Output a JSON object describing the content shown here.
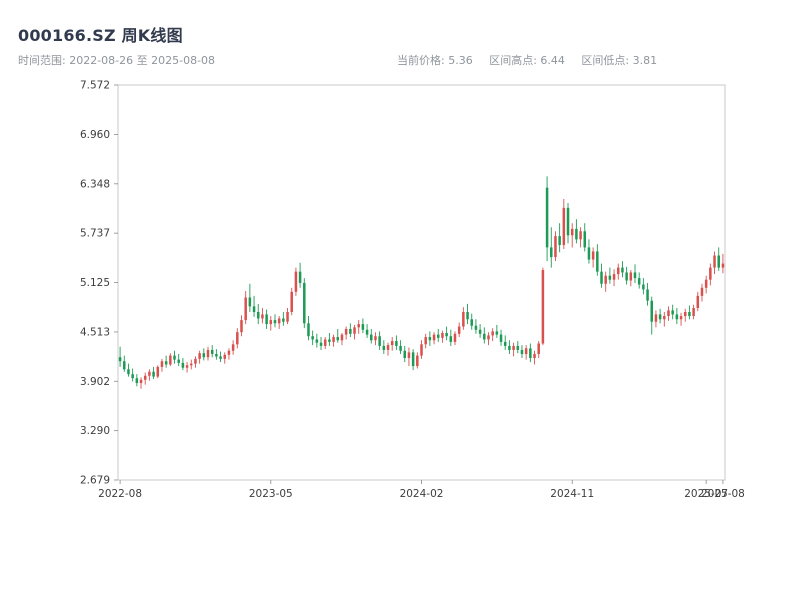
{
  "header": {
    "title": "000166.SZ 周K线图",
    "date_range": "时间范围: 2022-08-26 至 2025-08-08",
    "stats": [
      "当前价格: 5.36",
      "区间高点: 6.44",
      "区间低点: 3.81"
    ]
  },
  "chart_data": {
    "type": "candlestick",
    "symbol": "000166.SZ",
    "interval": "weekly",
    "title": "000166.SZ 周K线图",
    "date_start": "2022-08-26",
    "date_end": "2025-08-08",
    "current_price": 5.36,
    "range_high": 6.44,
    "range_low": 3.81,
    "ylim": [
      2.679,
      7.572
    ],
    "yticks": [
      7.572,
      6.96,
      6.348,
      5.737,
      5.125,
      4.513,
      3.902,
      3.29,
      2.679
    ],
    "xticks": [
      {
        "index": 0,
        "label": "2022-08"
      },
      {
        "index": 36,
        "label": "2023-05"
      },
      {
        "index": 72,
        "label": "2024-02"
      },
      {
        "index": 108,
        "label": "2024-11"
      },
      {
        "index": 140,
        "label": "2025-07"
      },
      {
        "index": 144,
        "label": "2025-08"
      }
    ],
    "grid": false,
    "legend": "none",
    "up_color": "#d9514e",
    "down_color": "#1d9a55",
    "candles": [
      [
        "2022-08-26",
        4.2,
        4.33,
        4.08,
        4.15
      ],
      [
        "2022-09-02",
        4.15,
        4.22,
        4.02,
        4.05
      ],
      [
        "2022-09-09",
        4.05,
        4.12,
        3.96,
        3.99
      ],
      [
        "2022-09-16",
        3.99,
        4.06,
        3.9,
        3.94
      ],
      [
        "2022-09-23",
        3.94,
        3.99,
        3.84,
        3.88
      ],
      [
        "2022-09-30",
        3.88,
        3.95,
        3.81,
        3.92
      ],
      [
        "2022-10-14",
        3.92,
        4.01,
        3.86,
        3.97
      ],
      [
        "2022-10-21",
        3.97,
        4.05,
        3.91,
        4.02
      ],
      [
        "2022-10-28",
        4.02,
        4.08,
        3.93,
        3.96
      ],
      [
        "2022-11-04",
        3.96,
        4.1,
        3.94,
        4.08
      ],
      [
        "2022-11-11",
        4.08,
        4.18,
        4.02,
        4.15
      ],
      [
        "2022-11-18",
        4.15,
        4.22,
        4.07,
        4.11
      ],
      [
        "2022-11-25",
        4.11,
        4.25,
        4.09,
        4.22
      ],
      [
        "2022-12-02",
        4.22,
        4.28,
        4.12,
        4.17
      ],
      [
        "2022-12-09",
        4.17,
        4.24,
        4.09,
        4.13
      ],
      [
        "2022-12-16",
        4.13,
        4.19,
        4.04,
        4.07
      ],
      [
        "2022-12-23",
        4.07,
        4.14,
        4.01,
        4.1
      ],
      [
        "2022-12-30",
        4.1,
        4.17,
        4.05,
        4.12
      ],
      [
        "2023-01-06",
        4.12,
        4.21,
        4.07,
        4.18
      ],
      [
        "2023-01-13",
        4.18,
        4.28,
        4.12,
        4.25
      ],
      [
        "2023-01-20",
        4.25,
        4.31,
        4.16,
        4.2
      ],
      [
        "2023-02-03",
        4.2,
        4.33,
        4.16,
        4.29
      ],
      [
        "2023-02-10",
        4.29,
        4.35,
        4.2,
        4.24
      ],
      [
        "2023-02-17",
        4.24,
        4.3,
        4.17,
        4.21
      ],
      [
        "2023-02-24",
        4.21,
        4.27,
        4.14,
        4.18
      ],
      [
        "2023-03-03",
        4.18,
        4.26,
        4.12,
        4.23
      ],
      [
        "2023-03-10",
        4.23,
        4.31,
        4.17,
        4.28
      ],
      [
        "2023-03-17",
        4.28,
        4.41,
        4.23,
        4.36
      ],
      [
        "2023-03-24",
        4.36,
        4.56,
        4.31,
        4.51
      ],
      [
        "2023-03-31",
        4.51,
        4.72,
        4.46,
        4.66
      ],
      [
        "2023-04-07",
        4.66,
        5.02,
        4.61,
        4.94
      ],
      [
        "2023-04-14",
        4.94,
        5.11,
        4.76,
        4.83
      ],
      [
        "2023-04-21",
        4.83,
        4.96,
        4.7,
        4.76
      ],
      [
        "2023-04-28",
        4.76,
        4.86,
        4.61,
        4.68
      ],
      [
        "2023-05-05",
        4.68,
        4.81,
        4.62,
        4.73
      ],
      [
        "2023-05-12",
        4.73,
        4.79,
        4.55,
        4.61
      ],
      [
        "2023-05-19",
        4.61,
        4.71,
        4.53,
        4.66
      ],
      [
        "2023-05-26",
        4.66,
        4.73,
        4.57,
        4.62
      ],
      [
        "2023-06-02",
        4.62,
        4.71,
        4.55,
        4.68
      ],
      [
        "2023-06-09",
        4.68,
        4.76,
        4.59,
        4.64
      ],
      [
        "2023-06-16",
        4.64,
        4.81,
        4.61,
        4.76
      ],
      [
        "2023-06-30",
        4.76,
        5.06,
        4.72,
        5.01
      ],
      [
        "2023-07-07",
        5.01,
        5.31,
        4.96,
        5.26
      ],
      [
        "2023-07-14",
        5.26,
        5.37,
        5.06,
        5.12
      ],
      [
        "2023-07-21",
        5.12,
        5.18,
        4.56,
        4.62
      ],
      [
        "2023-07-28",
        4.62,
        4.71,
        4.41,
        4.46
      ],
      [
        "2023-08-04",
        4.46,
        4.53,
        4.35,
        4.42
      ],
      [
        "2023-08-11",
        4.42,
        4.49,
        4.32,
        4.38
      ],
      [
        "2023-08-18",
        4.38,
        4.45,
        4.29,
        4.34
      ],
      [
        "2023-08-25",
        4.34,
        4.45,
        4.3,
        4.42
      ],
      [
        "2023-09-01",
        4.42,
        4.5,
        4.34,
        4.39
      ],
      [
        "2023-09-08",
        4.39,
        4.48,
        4.33,
        4.45
      ],
      [
        "2023-09-15",
        4.45,
        4.55,
        4.38,
        4.41
      ],
      [
        "2023-09-22",
        4.41,
        4.5,
        4.35,
        4.48
      ],
      [
        "2023-10-13",
        4.48,
        4.58,
        4.42,
        4.55
      ],
      [
        "2023-10-20",
        4.55,
        4.62,
        4.45,
        4.49
      ],
      [
        "2023-10-27",
        4.49,
        4.6,
        4.42,
        4.57
      ],
      [
        "2023-11-03",
        4.57,
        4.66,
        4.49,
        4.61
      ],
      [
        "2023-11-10",
        4.61,
        4.68,
        4.5,
        4.54
      ],
      [
        "2023-11-17",
        4.54,
        4.61,
        4.44,
        4.48
      ],
      [
        "2023-11-24",
        4.48,
        4.55,
        4.37,
        4.41
      ],
      [
        "2023-12-01",
        4.41,
        4.51,
        4.35,
        4.46
      ],
      [
        "2023-12-08",
        4.46,
        4.52,
        4.29,
        4.34
      ],
      [
        "2023-12-15",
        4.34,
        4.41,
        4.24,
        4.29
      ],
      [
        "2023-12-22",
        4.29,
        4.38,
        4.22,
        4.35
      ],
      [
        "2023-12-29",
        4.35,
        4.45,
        4.28,
        4.4
      ],
      [
        "2024-01-05",
        4.4,
        4.47,
        4.29,
        4.34
      ],
      [
        "2024-01-12",
        4.34,
        4.41,
        4.24,
        4.28
      ],
      [
        "2024-01-19",
        4.28,
        4.34,
        4.14,
        4.19
      ],
      [
        "2024-01-26",
        4.19,
        4.32,
        4.09,
        4.26
      ],
      [
        "2024-02-02",
        4.26,
        4.3,
        4.04,
        4.09
      ],
      [
        "2024-02-09",
        4.09,
        4.26,
        4.06,
        4.22
      ],
      [
        "2024-02-23",
        4.22,
        4.41,
        4.18,
        4.36
      ],
      [
        "2024-03-01",
        4.36,
        4.49,
        4.31,
        4.45
      ],
      [
        "2024-03-08",
        4.45,
        4.52,
        4.34,
        4.41
      ],
      [
        "2024-03-15",
        4.41,
        4.51,
        4.36,
        4.48
      ],
      [
        "2024-03-22",
        4.48,
        4.55,
        4.39,
        4.44
      ],
      [
        "2024-03-29",
        4.44,
        4.53,
        4.38,
        4.5
      ],
      [
        "2024-04-12",
        4.5,
        4.58,
        4.41,
        4.46
      ],
      [
        "2024-04-19",
        4.46,
        4.54,
        4.34,
        4.39
      ],
      [
        "2024-04-26",
        4.39,
        4.52,
        4.35,
        4.49
      ],
      [
        "2024-05-10",
        4.49,
        4.63,
        4.45,
        4.58
      ],
      [
        "2024-05-17",
        4.58,
        4.82,
        4.54,
        4.76
      ],
      [
        "2024-05-24",
        4.76,
        4.86,
        4.61,
        4.67
      ],
      [
        "2024-05-31",
        4.67,
        4.74,
        4.54,
        4.59
      ],
      [
        "2024-06-07",
        4.59,
        4.67,
        4.49,
        4.54
      ],
      [
        "2024-06-14",
        4.54,
        4.61,
        4.44,
        4.49
      ],
      [
        "2024-06-21",
        4.49,
        4.57,
        4.37,
        4.42
      ],
      [
        "2024-06-28",
        4.42,
        4.51,
        4.35,
        4.47
      ],
      [
        "2024-07-05",
        4.47,
        4.56,
        4.4,
        4.52
      ],
      [
        "2024-07-12",
        4.52,
        4.6,
        4.44,
        4.48
      ],
      [
        "2024-07-19",
        4.48,
        4.54,
        4.34,
        4.39
      ],
      [
        "2024-07-26",
        4.39,
        4.47,
        4.29,
        4.34
      ],
      [
        "2024-08-02",
        4.34,
        4.41,
        4.24,
        4.29
      ],
      [
        "2024-08-09",
        4.29,
        4.38,
        4.21,
        4.34
      ],
      [
        "2024-08-16",
        4.34,
        4.4,
        4.25,
        4.29
      ],
      [
        "2024-08-23",
        4.29,
        4.35,
        4.19,
        4.24
      ],
      [
        "2024-08-30",
        4.24,
        4.35,
        4.17,
        4.31
      ],
      [
        "2024-09-06",
        4.31,
        4.37,
        4.14,
        4.19
      ],
      [
        "2024-09-13",
        4.19,
        4.28,
        4.11,
        4.24
      ],
      [
        "2024-09-20",
        4.24,
        4.4,
        4.19,
        4.37
      ],
      [
        "2024-09-27",
        4.37,
        5.31,
        4.35,
        5.28
      ],
      [
        "2024-10-11",
        6.3,
        6.44,
        5.39,
        5.56
      ],
      [
        "2024-10-18",
        5.56,
        5.81,
        5.31,
        5.44
      ],
      [
        "2024-10-25",
        5.44,
        5.76,
        5.39,
        5.7
      ],
      [
        "2024-11-01",
        5.7,
        5.86,
        5.5,
        5.59
      ],
      [
        "2024-11-08",
        5.59,
        6.16,
        5.54,
        6.05
      ],
      [
        "2024-11-15",
        6.05,
        6.11,
        5.61,
        5.71
      ],
      [
        "2024-11-22",
        5.71,
        5.86,
        5.56,
        5.79
      ],
      [
        "2024-11-29",
        5.79,
        5.91,
        5.61,
        5.66
      ],
      [
        "2024-12-06",
        5.66,
        5.81,
        5.56,
        5.76
      ],
      [
        "2024-12-13",
        5.76,
        5.86,
        5.51,
        5.56
      ],
      [
        "2024-12-20",
        5.56,
        5.66,
        5.36,
        5.41
      ],
      [
        "2024-12-27",
        5.41,
        5.56,
        5.31,
        5.51
      ],
      [
        "2025-01-03",
        5.51,
        5.6,
        5.21,
        5.26
      ],
      [
        "2025-01-10",
        5.26,
        5.36,
        5.06,
        5.11
      ],
      [
        "2025-01-17",
        5.11,
        5.26,
        5.01,
        5.21
      ],
      [
        "2025-01-24",
        5.21,
        5.31,
        5.11,
        5.16
      ],
      [
        "2025-02-07",
        5.16,
        5.29,
        5.08,
        5.23
      ],
      [
        "2025-02-14",
        5.23,
        5.36,
        5.16,
        5.31
      ],
      [
        "2025-02-21",
        5.31,
        5.39,
        5.19,
        5.25
      ],
      [
        "2025-02-28",
        5.25,
        5.32,
        5.1,
        5.15
      ],
      [
        "2025-03-07",
        5.15,
        5.28,
        5.08,
        5.25
      ],
      [
        "2025-03-14",
        5.25,
        5.35,
        5.12,
        5.18
      ],
      [
        "2025-03-21",
        5.18,
        5.25,
        5.05,
        5.1
      ],
      [
        "2025-03-28",
        5.1,
        5.18,
        4.98,
        5.04
      ],
      [
        "2025-04-03",
        5.04,
        5.12,
        4.84,
        4.9
      ],
      [
        "2025-04-11",
        4.9,
        4.95,
        4.48,
        4.64
      ],
      [
        "2025-04-18",
        4.64,
        4.78,
        4.57,
        4.73
      ],
      [
        "2025-04-25",
        4.73,
        4.8,
        4.62,
        4.67
      ],
      [
        "2025-04-30",
        4.67,
        4.76,
        4.58,
        4.71
      ],
      [
        "2025-05-09",
        4.71,
        4.83,
        4.65,
        4.78
      ],
      [
        "2025-05-16",
        4.78,
        4.85,
        4.67,
        4.73
      ],
      [
        "2025-05-23",
        4.73,
        4.81,
        4.61,
        4.67
      ],
      [
        "2025-05-30",
        4.67,
        4.75,
        4.59,
        4.71
      ],
      [
        "2025-06-06",
        4.71,
        4.8,
        4.64,
        4.76
      ],
      [
        "2025-06-13",
        4.76,
        4.84,
        4.67,
        4.71
      ],
      [
        "2025-06-20",
        4.71,
        4.85,
        4.67,
        4.81
      ],
      [
        "2025-06-27",
        4.81,
        5.01,
        4.77,
        4.96
      ],
      [
        "2025-07-04",
        4.96,
        5.11,
        4.89,
        5.06
      ],
      [
        "2025-07-11",
        5.06,
        5.21,
        4.99,
        5.16
      ],
      [
        "2025-07-18",
        5.16,
        5.36,
        5.09,
        5.31
      ],
      [
        "2025-07-25",
        5.31,
        5.51,
        5.23,
        5.46
      ],
      [
        "2025-08-01",
        5.46,
        5.56,
        5.27,
        5.31
      ],
      [
        "2025-08-08",
        5.31,
        5.48,
        5.24,
        5.36
      ]
    ]
  }
}
